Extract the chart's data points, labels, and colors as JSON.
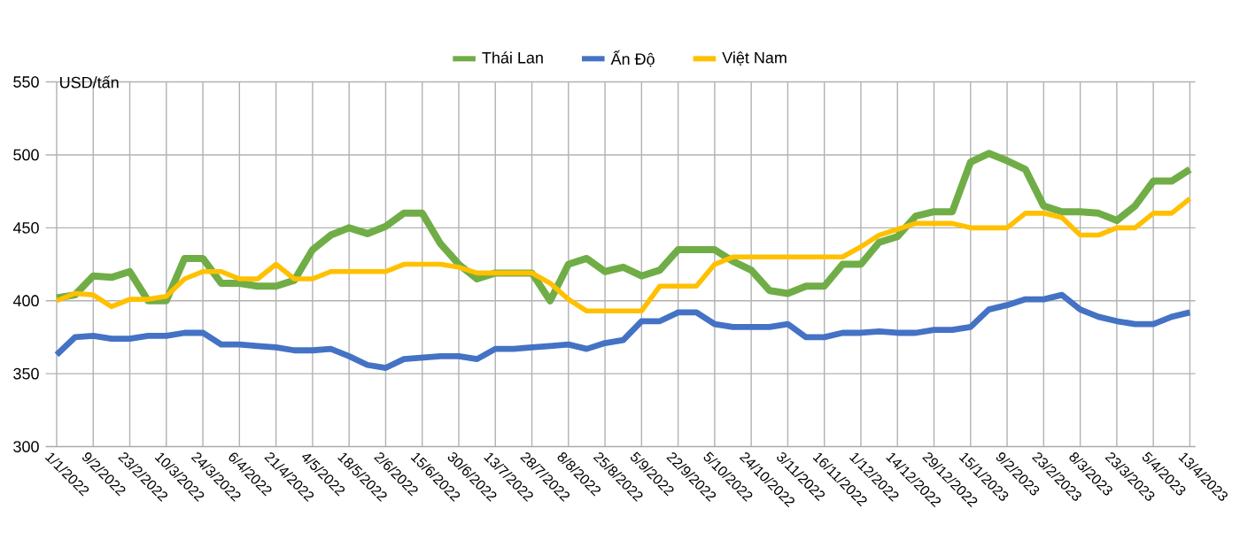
{
  "chart_data": {
    "type": "line",
    "ylabel": "USD/tấn",
    "categories": [
      "1/1/2022",
      null,
      "9/2/2022",
      null,
      "23/2/2022",
      null,
      "10/3/2022",
      null,
      "24/3/2022",
      null,
      "6/4/2022",
      null,
      "21/4/2022",
      null,
      "4/5/2022",
      null,
      "18/5/2022",
      null,
      "2/6/2022",
      null,
      "15/6/2022",
      null,
      "30/6/2022",
      null,
      "13/7/2022",
      null,
      "28/7/2022",
      null,
      "8/8/2022",
      null,
      "25/8/2022",
      null,
      "5/9/2022",
      null,
      "22/9/2022",
      null,
      "5/10/2022",
      null,
      "24/10/2022",
      null,
      "3/11/2022",
      null,
      "16/11/2022",
      null,
      "1/12/2022",
      null,
      "14/12/2022",
      null,
      "29/12/2022",
      null,
      "15/1/2023",
      null,
      "9/2/2023",
      null,
      "23/2/2023",
      null,
      "8/3/2023",
      null,
      "23/3/2023",
      null,
      "5/4/2023",
      null,
      "13/4/2023"
    ],
    "series": [
      {
        "name": "Thái Lan",
        "color": "#70ad47",
        "values": [
          402,
          404,
          417,
          416,
          420,
          400,
          400,
          429,
          429,
          412,
          412,
          410,
          410,
          414,
          435,
          445,
          450,
          446,
          451,
          460,
          460,
          439,
          425,
          415,
          419,
          419,
          419,
          400,
          425,
          429,
          420,
          423,
          417,
          421,
          435,
          435,
          435,
          427,
          421,
          407,
          405,
          410,
          410,
          425,
          425,
          440,
          444,
          458,
          461,
          461,
          495,
          501,
          496,
          490,
          465,
          461,
          461,
          460,
          455,
          465,
          482,
          482,
          490
        ]
      },
      {
        "name": "Ấn Độ",
        "color": "#4472c4",
        "values": [
          363,
          375,
          376,
          374,
          374,
          376,
          376,
          378,
          378,
          370,
          370,
          369,
          368,
          366,
          366,
          367,
          362,
          356,
          354,
          360,
          361,
          362,
          362,
          360,
          367,
          367,
          368,
          369,
          370,
          367,
          371,
          373,
          386,
          386,
          392,
          392,
          384,
          382,
          382,
          382,
          384,
          375,
          375,
          378,
          378,
          379,
          378,
          378,
          380,
          380,
          382,
          394,
          397,
          401,
          401,
          404,
          394,
          389,
          386,
          384,
          384,
          389,
          392
        ]
      },
      {
        "name": "Việt Nam",
        "color": "#ffc000",
        "values": [
          400,
          405,
          404,
          396,
          401,
          401,
          403,
          415,
          420,
          420,
          415,
          415,
          425,
          415,
          415,
          420,
          420,
          420,
          420,
          425,
          425,
          425,
          423,
          419,
          419,
          419,
          419,
          412,
          401,
          393,
          393,
          393,
          393,
          410,
          410,
          410,
          425,
          430,
          430,
          430,
          430,
          430,
          430,
          430,
          437,
          445,
          449,
          453,
          453,
          453,
          450,
          450,
          450,
          460,
          460,
          457,
          445,
          445,
          450,
          450,
          460,
          460,
          470
        ]
      }
    ],
    "ylim": [
      300,
      550
    ],
    "yticks": [
      300,
      350,
      400,
      450,
      500,
      550
    ],
    "grid": true,
    "legend": "top",
    "line_style": "solid",
    "marker": "none"
  }
}
